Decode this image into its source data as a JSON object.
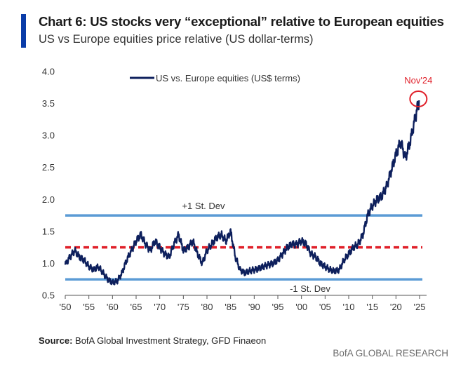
{
  "header": {
    "title": "Chart 6: US stocks very “exceptional” relative to European equities",
    "subtitle": "US vs Europe equities price relative (US dollar-terms)"
  },
  "footer": {
    "source_label": "Source:",
    "source_text": "BofA Global Investment Strategy, GFD Finaeon",
    "brand": "BofA GLOBAL RESEARCH"
  },
  "colors": {
    "accent": "#0a3ca8",
    "series_line": "#0d1f5c",
    "std_lines": "#5b9bd5",
    "mean_line": "#e0202a",
    "highlight": "#e0202a"
  },
  "chart_data": {
    "type": "line",
    "title": "Chart 6: US stocks very “exceptional” relative to European equities",
    "subtitle": "US vs Europe equities price relative (US dollar-terms)",
    "xlabel": "",
    "ylabel": "",
    "xlim": [
      1950,
      2025
    ],
    "ylim": [
      0.5,
      4.0
    ],
    "x_ticks": [
      "'50",
      "'55",
      "'60",
      "'65",
      "'70",
      "'75",
      "'80",
      "'85",
      "'90",
      "'95",
      "'00",
      "'05",
      "'10",
      "'15",
      "'20",
      "'25"
    ],
    "y_ticks": [
      "0.5",
      "1.0",
      "1.5",
      "2.0",
      "2.5",
      "3.0",
      "3.5",
      "4.0"
    ],
    "grid": false,
    "legend": {
      "position": "top-left",
      "entries": [
        "US vs. Europe equities (US$ terms)"
      ]
    },
    "series": [
      {
        "name": "US vs. Europe equities (US$ terms)",
        "x": [
          1950,
          1951,
          1952,
          1953,
          1954,
          1955,
          1956,
          1957,
          1958,
          1959,
          1960,
          1961,
          1962,
          1963,
          1964,
          1965,
          1966,
          1967,
          1968,
          1969,
          1970,
          1971,
          1972,
          1973,
          1974,
          1975,
          1976,
          1977,
          1978,
          1979,
          1980,
          1981,
          1982,
          1983,
          1984,
          1985,
          1986,
          1987,
          1988,
          1989,
          1990,
          1991,
          1992,
          1993,
          1994,
          1995,
          1996,
          1997,
          1998,
          1999,
          2000,
          2001,
          2002,
          2003,
          2004,
          2005,
          2006,
          2007,
          2008,
          2009,
          2010,
          2011,
          2012,
          2013,
          2014,
          2015,
          2016,
          2017,
          2018,
          2019,
          2020,
          2021,
          2022,
          2023,
          2024,
          2024.9
        ],
        "y": [
          0.98,
          1.1,
          1.2,
          1.1,
          1.05,
          0.95,
          0.9,
          0.95,
          0.85,
          0.75,
          0.7,
          0.72,
          0.85,
          1.05,
          1.2,
          1.35,
          1.45,
          1.3,
          1.2,
          1.35,
          1.25,
          1.15,
          1.1,
          1.3,
          1.45,
          1.2,
          1.25,
          1.35,
          1.15,
          1.0,
          1.2,
          1.3,
          1.4,
          1.45,
          1.35,
          1.5,
          1.1,
          0.9,
          0.85,
          0.88,
          0.9,
          0.92,
          0.95,
          0.98,
          1.0,
          1.05,
          1.15,
          1.25,
          1.3,
          1.3,
          1.35,
          1.3,
          1.15,
          1.1,
          1.0,
          0.95,
          0.9,
          0.88,
          0.9,
          1.05,
          1.15,
          1.25,
          1.3,
          1.45,
          1.75,
          1.9,
          2.0,
          2.05,
          2.2,
          2.45,
          2.7,
          2.9,
          2.65,
          2.9,
          3.25,
          3.55
        ]
      }
    ],
    "reference_lines": [
      {
        "label": "+1 St. Dev",
        "y": 1.75,
        "style": "solid"
      },
      {
        "label": "",
        "y": 1.25,
        "style": "dashed"
      },
      {
        "label": "-1 St. Dev",
        "y": 0.75,
        "style": "solid"
      }
    ],
    "annotations": [
      {
        "text": "Nov'24",
        "x": 2024.9,
        "y": 3.55
      }
    ]
  }
}
